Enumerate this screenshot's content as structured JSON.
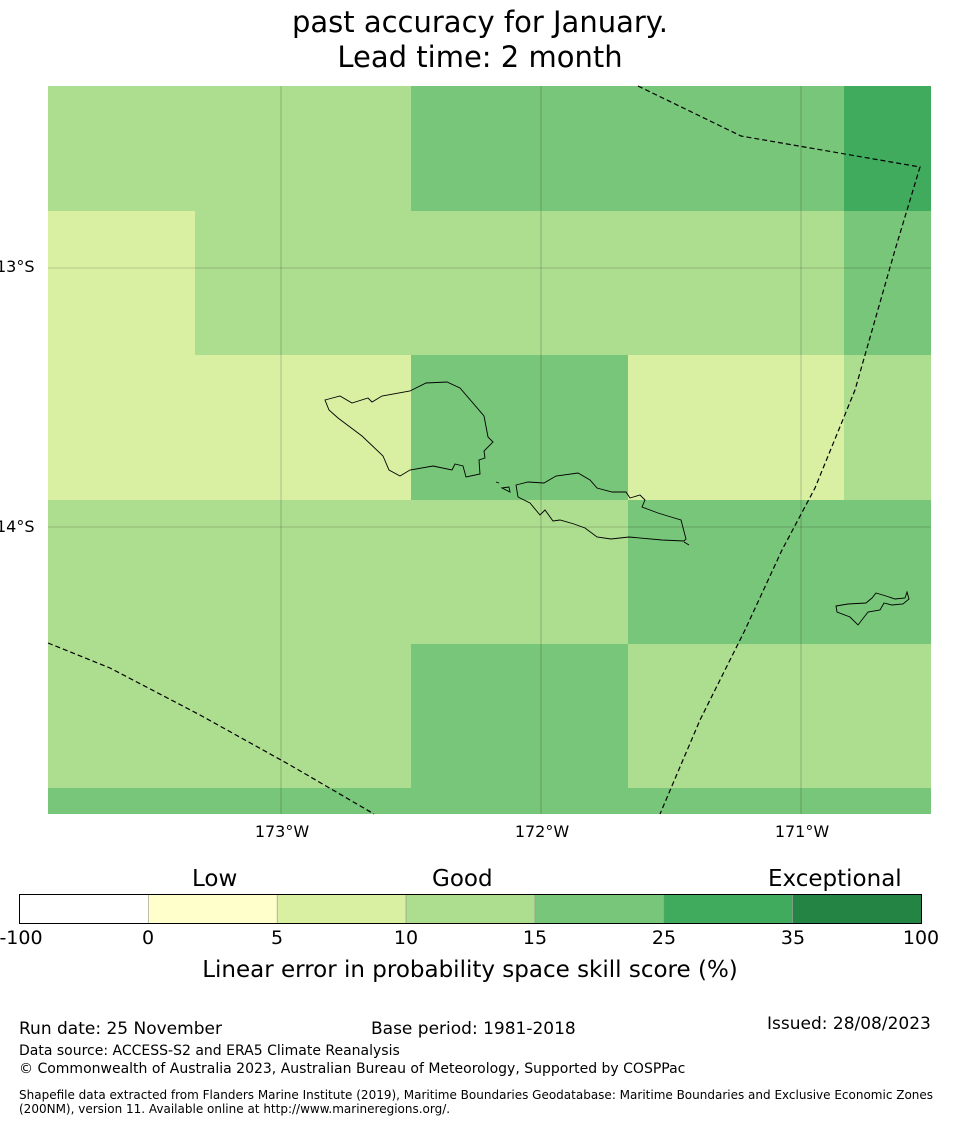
{
  "title_lines": [
    "past accuracy for January.",
    "Lead time: 2 month"
  ],
  "colors": {
    "c0": "#ffffff",
    "c1": "#ffffcc",
    "c2": "#d9f0a3",
    "c3": "#addd8e",
    "c4": "#78c679",
    "c5": "#41ab5d",
    "c6": "#238443",
    "boundary": "#000000"
  },
  "map": {
    "lat_labels": [
      "13°S",
      "14°S"
    ],
    "lon_labels": [
      "173°W",
      "172°W",
      "171°W"
    ],
    "grid_rows": [
      [
        "c3",
        "c3",
        "c4",
        "c4",
        "c5"
      ],
      [
        "c2",
        "c3",
        "c3",
        "c3",
        "c4"
      ],
      [
        "c2",
        "c2",
        "c4",
        "c2",
        "c3"
      ],
      [
        "c3",
        "c3",
        "c3",
        "c4",
        "c4"
      ],
      [
        "c3",
        "c3",
        "c4",
        "c3",
        "c3"
      ],
      [
        "c4",
        "c4",
        "c4",
        "c4",
        "c4"
      ]
    ]
  },
  "colorbar": {
    "category_labels": [
      "Low",
      "Good",
      "Exceptional"
    ],
    "ticks": [
      "-100",
      "0",
      "5",
      "10",
      "15",
      "25",
      "35",
      "100"
    ],
    "colors": [
      "c0",
      "c1",
      "c2",
      "c3",
      "c4",
      "c5",
      "c6"
    ],
    "title": "Linear error in probability space skill score (%)"
  },
  "footer": {
    "run_date": "Run date: 25 November",
    "base_period": "Base period: 1981-2018",
    "issued": "Issued: 28/08/2023",
    "data_source": "Data source: ACCESS-S2 and ERA5 Climate Reanalysis",
    "copyright": "© Commonwealth of Australia 2023, Australian Bureau of Meteorology, Supported by COSPPac",
    "shapefile": "Shapefile data extracted from Flanders Marine Institute (2019), Maritime Boundaries Geodatabase: Maritime Boundaries and Exclusive Economic Zones (200NM), version 11. Available online at http://www.marineregions.org/."
  }
}
